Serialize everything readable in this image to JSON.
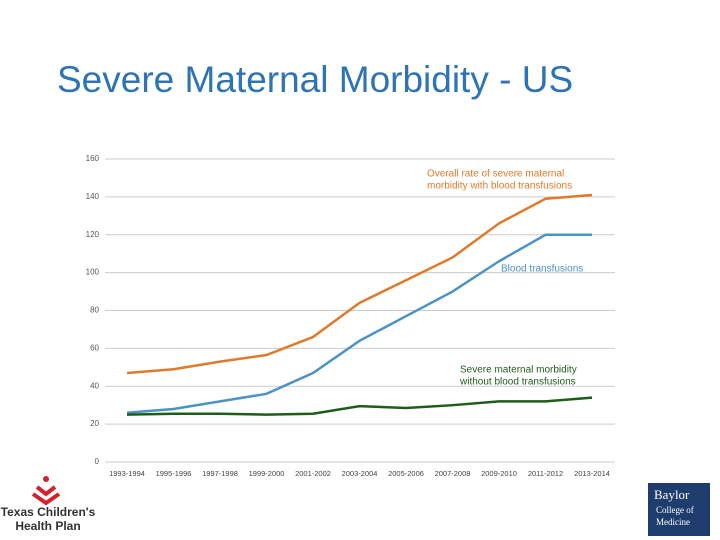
{
  "chart_data": {
    "type": "line",
    "title": "Severe Maternal Morbidity - US",
    "categories": [
      "1993-1994",
      "1995-1996",
      "1997-1998",
      "1999-2000",
      "2001-2002",
      "2003-2004",
      "2005-2006",
      "2007-2008",
      "2009-2010",
      "2011-2012",
      "2013-2014"
    ],
    "series": [
      {
        "name": "Overall rate of severe maternal morbidity with blood transfusions",
        "color": "#e07a2a",
        "values": [
          47,
          49,
          53,
          56.5,
          66,
          84,
          96,
          108,
          126,
          139,
          141
        ]
      },
      {
        "name": "Blood transfusions",
        "color": "#4b93c6",
        "values": [
          26,
          28,
          32,
          36,
          47,
          64,
          77,
          90,
          106,
          120,
          120
        ]
      },
      {
        "name": "Severe maternal morbidity without blood transfusions",
        "color": "#1f5c1a",
        "values": [
          25,
          25.5,
          25.5,
          25,
          25.5,
          29.5,
          28.5,
          30,
          32,
          32,
          34
        ]
      }
    ],
    "annotations": [
      {
        "lines": [
          "Overall rate of severe maternal",
          "morbidity with blood transfusions"
        ],
        "color": "#e07a2a"
      },
      {
        "lines": [
          "Blood transfusions"
        ],
        "color": "#4b93c6"
      },
      {
        "lines": [
          "Severe maternal morbidity",
          "without blood transfusions"
        ],
        "color": "#1f5c1a"
      }
    ],
    "ylim": [
      0,
      160
    ],
    "yticks": [
      0,
      20,
      40,
      60,
      80,
      100,
      120,
      140,
      160
    ],
    "grid": true
  },
  "logos": {
    "left": [
      "Texas Children's",
      "Health Plan"
    ],
    "right": [
      "Baylor",
      "College of",
      "Medicine"
    ]
  }
}
